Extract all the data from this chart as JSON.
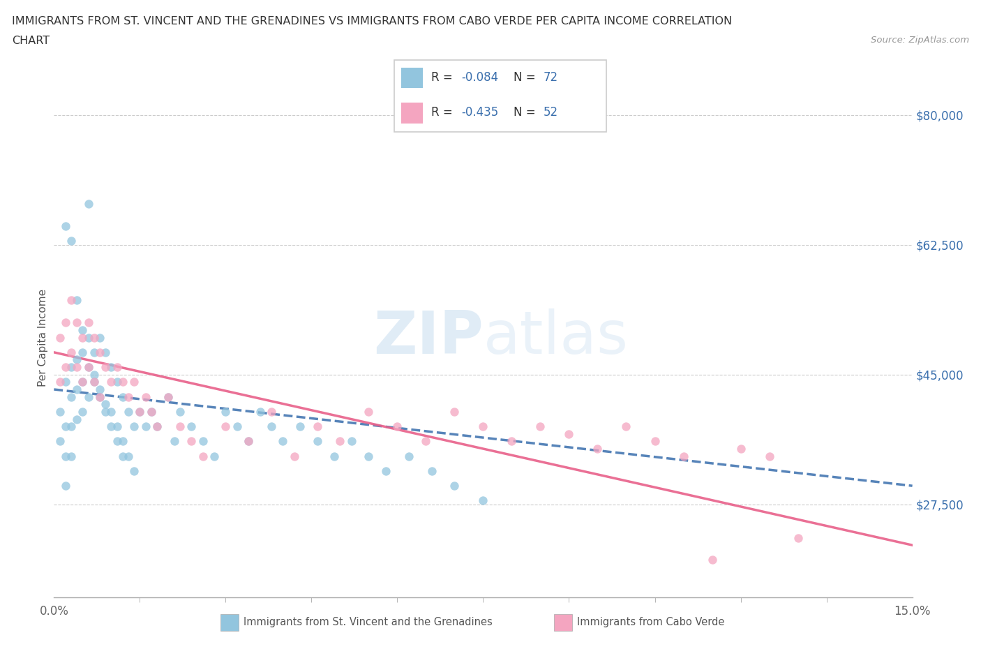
{
  "title_line1": "IMMIGRANTS FROM ST. VINCENT AND THE GRENADINES VS IMMIGRANTS FROM CABO VERDE PER CAPITA INCOME CORRELATION",
  "title_line2": "CHART",
  "source": "Source: ZipAtlas.com",
  "ylabel": "Per Capita Income",
  "xlim": [
    0.0,
    0.15
  ],
  "ylim": [
    15000,
    85000
  ],
  "ytick_vals": [
    27500,
    45000,
    62500,
    80000
  ],
  "ytick_labels": [
    "$27,500",
    "$45,000",
    "$62,500",
    "$80,000"
  ],
  "xtick_vals": [
    0.0,
    0.15
  ],
  "xtick_labels": [
    "0.0%",
    "15.0%"
  ],
  "watermark": "ZIPatlas",
  "color_blue": "#92c5de",
  "color_pink": "#f4a5c0",
  "color_blue_line": "#3a6fad",
  "color_pink_line": "#e8608a",
  "legend_R1": "-0.084",
  "legend_N1": "72",
  "legend_R2": "-0.435",
  "legend_N2": "52",
  "label_blue": "Immigrants from St. Vincent and the Grenadines",
  "label_pink": "Immigrants from Cabo Verde",
  "blue_x": [
    0.001,
    0.001,
    0.002,
    0.002,
    0.002,
    0.002,
    0.003,
    0.003,
    0.003,
    0.003,
    0.004,
    0.004,
    0.004,
    0.005,
    0.005,
    0.005,
    0.006,
    0.006,
    0.006,
    0.007,
    0.007,
    0.008,
    0.008,
    0.009,
    0.009,
    0.01,
    0.01,
    0.011,
    0.011,
    0.012,
    0.012,
    0.013,
    0.013,
    0.014,
    0.015,
    0.016,
    0.017,
    0.018,
    0.02,
    0.021,
    0.022,
    0.024,
    0.026,
    0.028,
    0.03,
    0.032,
    0.034,
    0.036,
    0.038,
    0.04,
    0.043,
    0.046,
    0.049,
    0.052,
    0.055,
    0.058,
    0.062,
    0.066,
    0.07,
    0.075,
    0.002,
    0.003,
    0.004,
    0.005,
    0.006,
    0.007,
    0.008,
    0.009,
    0.01,
    0.011,
    0.012,
    0.014
  ],
  "blue_y": [
    40000,
    36000,
    44000,
    38000,
    34000,
    30000,
    46000,
    42000,
    38000,
    34000,
    47000,
    43000,
    39000,
    48000,
    44000,
    40000,
    50000,
    46000,
    42000,
    48000,
    44000,
    50000,
    43000,
    48000,
    41000,
    46000,
    40000,
    44000,
    38000,
    42000,
    36000,
    40000,
    34000,
    38000,
    40000,
    38000,
    40000,
    38000,
    42000,
    36000,
    40000,
    38000,
    36000,
    34000,
    40000,
    38000,
    36000,
    40000,
    38000,
    36000,
    38000,
    36000,
    34000,
    36000,
    34000,
    32000,
    34000,
    32000,
    30000,
    28000,
    65000,
    63000,
    55000,
    51000,
    68000,
    45000,
    42000,
    40000,
    38000,
    36000,
    34000,
    32000
  ],
  "pink_x": [
    0.001,
    0.001,
    0.002,
    0.002,
    0.003,
    0.003,
    0.004,
    0.004,
    0.005,
    0.005,
    0.006,
    0.006,
    0.007,
    0.007,
    0.008,
    0.008,
    0.009,
    0.01,
    0.011,
    0.012,
    0.013,
    0.014,
    0.015,
    0.016,
    0.017,
    0.018,
    0.02,
    0.022,
    0.024,
    0.026,
    0.03,
    0.034,
    0.038,
    0.042,
    0.046,
    0.05,
    0.055,
    0.06,
    0.065,
    0.07,
    0.075,
    0.08,
    0.085,
    0.09,
    0.095,
    0.1,
    0.105,
    0.11,
    0.115,
    0.12,
    0.125,
    0.13
  ],
  "pink_y": [
    50000,
    44000,
    52000,
    46000,
    55000,
    48000,
    52000,
    46000,
    50000,
    44000,
    52000,
    46000,
    50000,
    44000,
    48000,
    42000,
    46000,
    44000,
    46000,
    44000,
    42000,
    44000,
    40000,
    42000,
    40000,
    38000,
    42000,
    38000,
    36000,
    34000,
    38000,
    36000,
    40000,
    34000,
    38000,
    36000,
    40000,
    38000,
    36000,
    40000,
    38000,
    36000,
    38000,
    37000,
    35000,
    38000,
    36000,
    34000,
    20000,
    35000,
    34000,
    23000
  ]
}
